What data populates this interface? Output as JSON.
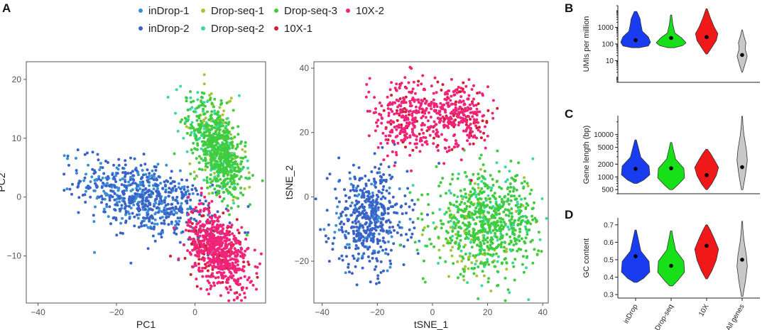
{
  "panels": {
    "A": "A",
    "B": "B",
    "C": "C",
    "D": "D"
  },
  "colors": {
    "inDrop-1": "#3a8fd6",
    "inDrop-2": "#3a63c8",
    "Drop-seq-1": "#a8c53a",
    "Drop-seq-2": "#3ad9a0",
    "Drop-seq-3": "#3fcc3f",
    "10X-1": "#d01f2a",
    "10X-2": "#f0247a",
    "violin_inDrop": "#1a3cf0",
    "violin_Drop-seq": "#18e018",
    "violin_10X": "#f01818",
    "violin_All genes": "#c8c8c8"
  },
  "legend": [
    "inDrop-1",
    "inDrop-2",
    "Drop-seq-1",
    "Drop-seq-2",
    "Drop-seq-3",
    "10X-1",
    "10X-2"
  ],
  "chart_data": [
    {
      "type": "scatter",
      "panel": "A",
      "xlabel": "PC1",
      "ylabel": "PC2",
      "xlim": [
        -43,
        18
      ],
      "ylim": [
        -18,
        23
      ],
      "xticks": [
        -40,
        -20,
        0
      ],
      "yticks": [
        -10,
        0,
        10,
        20
      ],
      "xtick_labels": [
        "−40",
        "−20",
        "0"
      ],
      "ytick_labels": [
        "−10",
        "0",
        "10",
        "20"
      ],
      "grid": false,
      "series": [
        {
          "name": "inDrop-1",
          "cluster": {
            "cx": -14,
            "cy": 0,
            "sx": 7.5,
            "sy": 2.8,
            "n": 280
          }
        },
        {
          "name": "inDrop-2",
          "cluster": {
            "cx": -12,
            "cy": -0.5,
            "sx": 8.5,
            "sy": 3.0,
            "n": 420
          }
        },
        {
          "name": "Drop-seq-1",
          "cluster": {
            "cx": 6,
            "cy": 9,
            "sx": 3.5,
            "sy": 4.0,
            "n": 120
          }
        },
        {
          "name": "Drop-seq-2",
          "cluster": {
            "cx": 5,
            "cy": 9,
            "sx": 3.8,
            "sy": 3.5,
            "n": 160
          }
        },
        {
          "name": "Drop-seq-3",
          "cluster": {
            "cx": 6,
            "cy": 8,
            "sx": 3.5,
            "sy": 3.5,
            "n": 520
          }
        },
        {
          "name": "10X-1",
          "cluster": {
            "cx": 5,
            "cy": -9,
            "sx": 3.8,
            "sy": 3.0,
            "n": 120
          }
        },
        {
          "name": "10X-2",
          "cluster": {
            "cx": 6,
            "cy": -9,
            "sx": 3.8,
            "sy": 3.2,
            "n": 560
          }
        }
      ]
    },
    {
      "type": "scatter",
      "panel": "A",
      "xlabel": "tSNE_1",
      "ylabel": "tSNE_2",
      "xlim": [
        -43,
        42
      ],
      "ylim": [
        -33,
        42
      ],
      "xticks": [
        -40,
        -20,
        0,
        20,
        40
      ],
      "yticks": [
        -20,
        0,
        20,
        40
      ],
      "xtick_labels": [
        "−40",
        "−20",
        "0",
        "20",
        "40"
      ],
      "ytick_labels": [
        "−20",
        "0",
        "20",
        "40"
      ],
      "grid": false,
      "series": [
        {
          "name": "inDrop-1",
          "cluster": {
            "cx": -23,
            "cy": -7,
            "sx": 7,
            "sy": 8,
            "n": 90
          }
        },
        {
          "name": "inDrop-2",
          "cluster": {
            "cx": -23,
            "cy": -7,
            "sx": 7,
            "sy": 8,
            "n": 420
          }
        },
        {
          "name": "Drop-seq-1",
          "cluster": {
            "cx": 16,
            "cy": -12,
            "sx": 9,
            "sy": 8,
            "n": 100
          }
        },
        {
          "name": "Drop-seq-2",
          "cluster": {
            "cx": 20,
            "cy": -8,
            "sx": 9,
            "sy": 7,
            "n": 150
          }
        },
        {
          "name": "Drop-seq-3",
          "cluster": {
            "cx": 20,
            "cy": -8,
            "sx": 9.5,
            "sy": 7.5,
            "n": 560
          }
        },
        {
          "name": "10X-1",
          "cluster": {
            "cx": 0,
            "cy": 25,
            "sx": 11,
            "sy": 5,
            "n": 110
          }
        },
        {
          "name": "10X-2",
          "cluster": {
            "cx": 0,
            "cy": 25,
            "sx": 11,
            "sy": 5,
            "n": 480
          }
        }
      ]
    },
    {
      "type": "violin",
      "panel": "B",
      "ylabel": "UMIs per million",
      "scale": "log",
      "ylim": [
        0.5,
        20000
      ],
      "yticks": [
        10,
        100,
        1000
      ],
      "ytick_labels": [
        "10",
        "100",
        "1000"
      ],
      "categories": [
        "inDrop",
        "Drop-seq",
        "10X",
        "All genes"
      ],
      "median": [
        170,
        230,
        260,
        22
      ],
      "range": [
        [
          60,
          9000
        ],
        [
          60,
          5500
        ],
        [
          25,
          13000
        ],
        [
          2,
          700
        ]
      ]
    },
    {
      "type": "violin",
      "panel": "C",
      "ylabel": "Gene length (bp)",
      "scale": "log",
      "ylim": [
        400,
        28000
      ],
      "yticks": [
        500,
        1000,
        2000,
        5000,
        10000
      ],
      "ytick_labels": [
        "500",
        "1000",
        "2000",
        "5000",
        "10000"
      ],
      "categories": [
        "inDrop",
        "Drop-seq",
        "10X",
        "All genes"
      ],
      "median": [
        1550,
        1600,
        1100,
        1700
      ],
      "range": [
        [
          700,
          7500
        ],
        [
          500,
          6500
        ],
        [
          500,
          4500
        ],
        [
          500,
          27000
        ]
      ]
    },
    {
      "type": "violin",
      "panel": "D",
      "ylabel": "GC content",
      "scale": "linear",
      "ylim": [
        0.28,
        0.74
      ],
      "yticks": [
        0.3,
        0.4,
        0.5,
        0.6,
        0.7
      ],
      "ytick_labels": [
        "0.3",
        "0.4",
        "0.5",
        "0.6",
        "0.7"
      ],
      "categories": [
        "inDrop",
        "Drop-seq",
        "10X",
        "All genes"
      ],
      "median": [
        0.52,
        0.465,
        0.58,
        0.5
      ],
      "range": [
        [
          0.37,
          0.67
        ],
        [
          0.35,
          0.665
        ],
        [
          0.39,
          0.7
        ],
        [
          0.29,
          0.72
        ]
      ]
    }
  ]
}
